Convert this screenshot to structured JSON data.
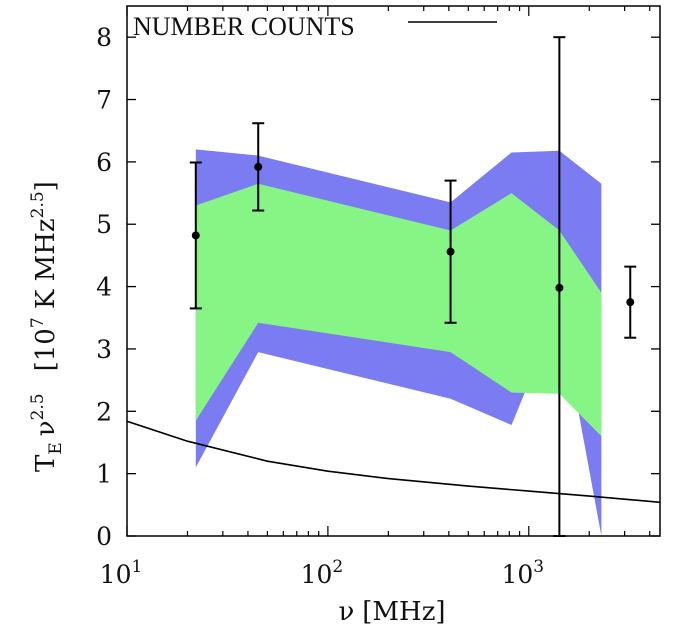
{
  "chart_data": {
    "type": "scatter",
    "xscale": "log",
    "xlim": [
      10,
      4500
    ],
    "ylim": [
      0,
      8.5
    ],
    "xlabel": {
      "symbol": "ν",
      "unit": "[MHz]"
    },
    "ylabel": {
      "lead": "T",
      "sub": "E",
      "nu": "ν",
      "exp": "2.5",
      "unit_open": "[10",
      "unit_exp": "7",
      "unit_mid": " K MHz",
      "unit_exp2": "2.5",
      "unit_close": "]"
    },
    "xticks": [
      {
        "value": 10,
        "base": "10",
        "exp": "1"
      },
      {
        "value": 100,
        "base": "10",
        "exp": "2"
      },
      {
        "value": 1000,
        "base": "10",
        "exp": "3"
      }
    ],
    "yticks": [
      "0",
      "1",
      "2",
      "3",
      "4",
      "5",
      "6",
      "7",
      "8"
    ],
    "colors": {
      "outer_band": "#7b7bf2",
      "inner_band": "#86f586",
      "points": "#000000",
      "line": "#000000"
    },
    "bands": {
      "outer_upper": [
        [
          22,
          6.2
        ],
        [
          45,
          6.1
        ],
        [
          408,
          5.35
        ],
        [
          820,
          6.15
        ],
        [
          1420,
          6.18
        ],
        [
          2300,
          5.65
        ]
      ],
      "outer_lower": [
        [
          22,
          1.1
        ],
        [
          45,
          2.95
        ],
        [
          408,
          2.2
        ],
        [
          820,
          1.78
        ],
        [
          1420,
          3.65
        ],
        [
          2300,
          0.0
        ]
      ],
      "inner_upper": [
        [
          22,
          5.3
        ],
        [
          45,
          5.65
        ],
        [
          408,
          4.9
        ],
        [
          820,
          5.5
        ],
        [
          1420,
          4.9
        ],
        [
          2300,
          3.9
        ]
      ],
      "inner_lower": [
        [
          22,
          1.85
        ],
        [
          45,
          3.42
        ],
        [
          408,
          2.95
        ],
        [
          820,
          2.3
        ],
        [
          1420,
          2.28
        ],
        [
          2300,
          1.6
        ]
      ]
    },
    "points": [
      {
        "x": 22,
        "y": 4.82,
        "ylo": 3.65,
        "yhi": 5.99
      },
      {
        "x": 45,
        "y": 5.92,
        "ylo": 5.22,
        "yhi": 6.62
      },
      {
        "x": 408,
        "y": 4.56,
        "ylo": 3.42,
        "yhi": 5.7
      },
      {
        "x": 1420,
        "y": 3.98,
        "ylo": 0.0,
        "yhi": 8.0
      },
      {
        "x": 3200,
        "y": 3.75,
        "ylo": 3.18,
        "yhi": 4.32
      }
    ],
    "series": [
      {
        "name": "NUMBER COUNTS",
        "type": "line",
        "x": [
          10,
          20,
          50,
          100,
          200,
          500,
          1000,
          2000,
          4500
        ],
        "y": [
          1.84,
          1.52,
          1.2,
          1.04,
          0.92,
          0.8,
          0.72,
          0.64,
          0.54
        ]
      }
    ],
    "legend": {
      "position": "top-left",
      "label": "NUMBER COUNTS"
    }
  }
}
